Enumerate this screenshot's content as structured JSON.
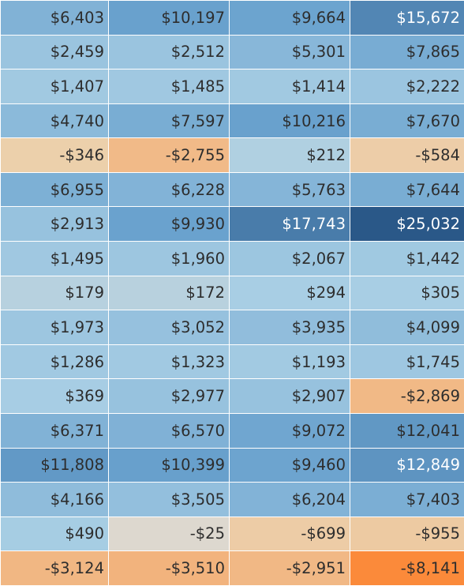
{
  "chart_data": {
    "type": "heatmap",
    "rows": [
      [
        "$6,403",
        "$10,197",
        "$9,664",
        "$15,672"
      ],
      [
        "$2,459",
        "$2,512",
        "$5,301",
        "$7,865"
      ],
      [
        "$1,407",
        "$1,485",
        "$1,414",
        "$2,222"
      ],
      [
        "$4,740",
        "$7,597",
        "$10,216",
        "$7,670"
      ],
      [
        "-$346",
        "-$2,755",
        "$212",
        "-$584"
      ],
      [
        "$6,955",
        "$6,228",
        "$5,763",
        "$7,644"
      ],
      [
        "$2,913",
        "$9,930",
        "$17,743",
        "$25,032"
      ],
      [
        "$1,495",
        "$1,960",
        "$2,067",
        "$1,442"
      ],
      [
        "$179",
        "$172",
        "$294",
        "$305"
      ],
      [
        "$1,973",
        "$3,052",
        "$3,935",
        "$4,099"
      ],
      [
        "$1,286",
        "$1,323",
        "$1,193",
        "$1,745"
      ],
      [
        "$369",
        "$2,977",
        "$2,907",
        "-$2,869"
      ],
      [
        "$6,371",
        "$6,570",
        "$9,072",
        "$12,041"
      ],
      [
        "$11,808",
        "$10,399",
        "$9,460",
        "$12,849"
      ],
      [
        "$4,166",
        "$3,505",
        "$6,204",
        "$7,403"
      ],
      [
        "$490",
        "-$25",
        "-$699",
        "-$955"
      ],
      [
        "-$3,124",
        "-$3,510",
        "-$2,951",
        "-$8,141"
      ]
    ],
    "color_scale": {
      "type": "diverging",
      "negative_color": "#fb8a3a",
      "neutral_color": "#dcd9d2",
      "positive_color": "#2a5888"
    }
  }
}
